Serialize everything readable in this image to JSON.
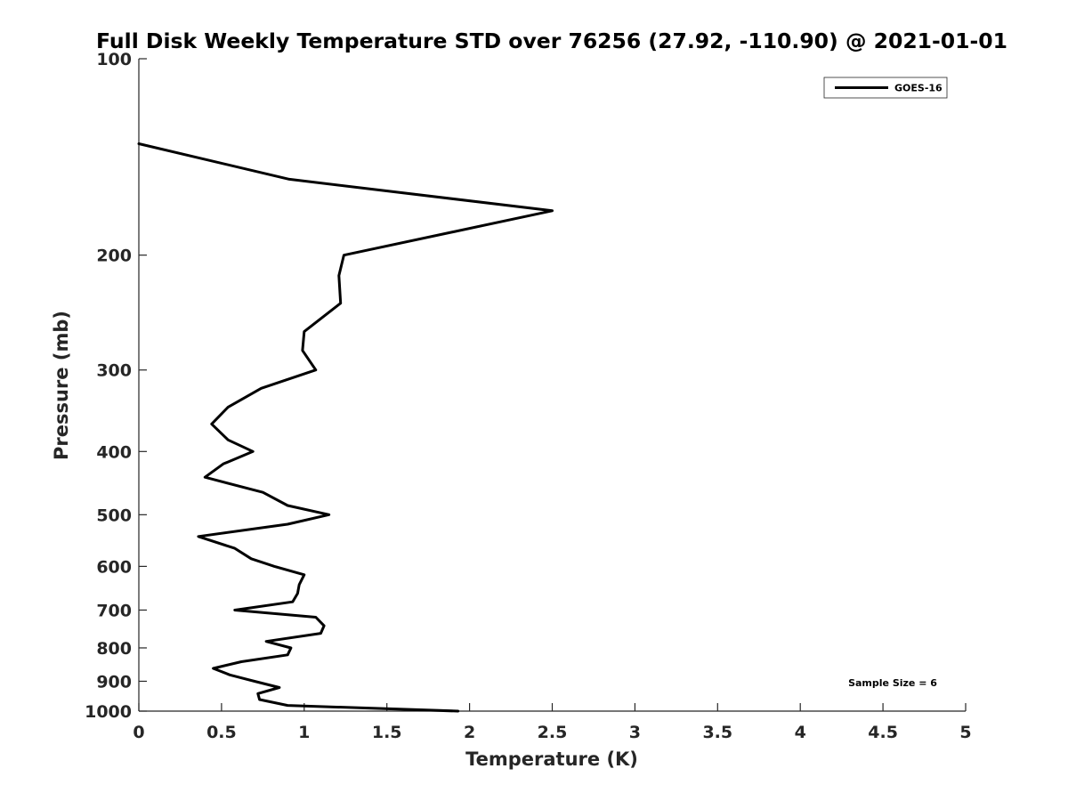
{
  "chart_data": {
    "type": "line",
    "title": "Full Disk Weekly Temperature STD over 76256 (27.92, -110.90) @ 2021-01-01",
    "xlabel": "Temperature (K)",
    "ylabel": "Pressure (mb)",
    "xlim": [
      0,
      5
    ],
    "ylim": [
      100,
      1000
    ],
    "yscale": "log",
    "y_reversed": true,
    "x_ticks": [
      "0",
      "0.5",
      "1",
      "1.5",
      "2",
      "2.5",
      "3",
      "3.5",
      "4",
      "4.5",
      "5"
    ],
    "y_ticks": [
      "100",
      "200",
      "300",
      "400",
      "500",
      "600",
      "700",
      "800",
      "900",
      "1000"
    ],
    "grid": false,
    "legend": {
      "position": "top-right",
      "entries": [
        "GOES-16"
      ]
    },
    "annotation": "Sample Size = 6",
    "series": [
      {
        "name": "GOES-16",
        "color": "#000000",
        "points": [
          [
            0.0,
            135
          ],
          [
            0.91,
            153
          ],
          [
            2.5,
            171
          ],
          [
            1.24,
            200
          ],
          [
            1.21,
            215
          ],
          [
            1.22,
            237
          ],
          [
            1.0,
            262
          ],
          [
            0.99,
            280
          ],
          [
            1.07,
            300
          ],
          [
            0.74,
            320
          ],
          [
            0.54,
            342
          ],
          [
            0.44,
            363
          ],
          [
            0.54,
            384
          ],
          [
            0.69,
            400
          ],
          [
            0.51,
            418
          ],
          [
            0.4,
            438
          ],
          [
            0.75,
            462
          ],
          [
            0.9,
            484
          ],
          [
            1.15,
            500
          ],
          [
            0.9,
            517
          ],
          [
            0.36,
            540
          ],
          [
            0.58,
            563
          ],
          [
            0.68,
            584
          ],
          [
            0.82,
            600
          ],
          [
            1.0,
            618
          ],
          [
            0.97,
            640
          ],
          [
            0.96,
            660
          ],
          [
            0.93,
            680
          ],
          [
            0.58,
            700
          ],
          [
            1.07,
            718
          ],
          [
            1.12,
            740
          ],
          [
            1.1,
            760
          ],
          [
            0.77,
            782
          ],
          [
            0.92,
            800
          ],
          [
            0.9,
            820
          ],
          [
            0.62,
            840
          ],
          [
            0.45,
            860
          ],
          [
            0.55,
            880
          ],
          [
            0.7,
            900
          ],
          [
            0.85,
            920
          ],
          [
            0.72,
            940
          ],
          [
            0.73,
            960
          ],
          [
            0.9,
            980
          ],
          [
            1.93,
            1000
          ]
        ]
      }
    ]
  }
}
